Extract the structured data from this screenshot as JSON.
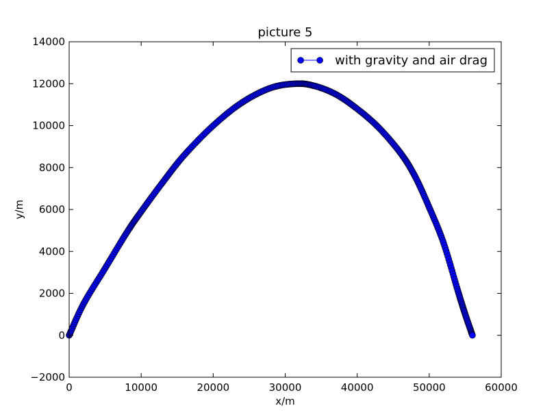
{
  "chart_data": {
    "type": "line",
    "title": "picture 5",
    "xlabel": "x/m",
    "ylabel": "y/m",
    "xlim": [
      0,
      60000
    ],
    "ylim": [
      -2000,
      14000
    ],
    "xticks": [
      0,
      10000,
      20000,
      30000,
      40000,
      50000,
      60000
    ],
    "yticks": [
      -2000,
      0,
      2000,
      4000,
      6000,
      8000,
      10000,
      12000,
      14000
    ],
    "xtick_labels": [
      "0",
      "10000",
      "20000",
      "30000",
      "40000",
      "50000",
      "60000"
    ],
    "ytick_labels": [
      "−2000",
      "0",
      "2000",
      "4000",
      "6000",
      "8000",
      "10000",
      "12000",
      "14000"
    ],
    "grid": false,
    "legend_position": "top-right",
    "series": [
      {
        "name": "with gravity and air drag",
        "color": "#0000ff",
        "marker": "circle",
        "x": [
          0,
          2000,
          5000,
          8000,
          10000,
          13000,
          16000,
          20000,
          24000,
          28000,
          31500,
          34000,
          37000,
          40000,
          43000,
          46000,
          48000,
          50000,
          52000,
          54000,
          55000,
          56000
        ],
        "y": [
          0,
          1500,
          3200,
          4900,
          5900,
          7300,
          8600,
          10000,
          11100,
          11800,
          12000,
          11900,
          11500,
          10800,
          9900,
          8700,
          7600,
          6100,
          4400,
          2100,
          1000,
          0
        ]
      }
    ]
  }
}
